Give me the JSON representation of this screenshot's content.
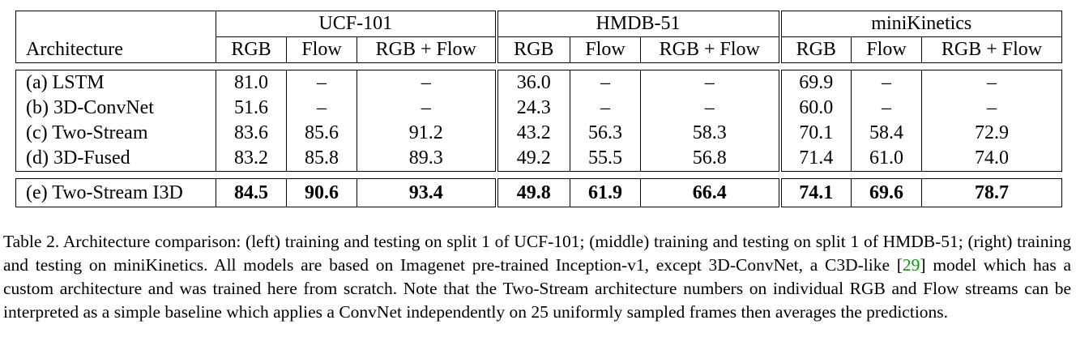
{
  "table": {
    "groups": [
      "UCF-101",
      "HMDB-51",
      "miniKinetics"
    ],
    "arch_header": "Architecture",
    "subheaders": [
      "RGB",
      "Flow",
      "RGB + Flow"
    ],
    "rows": [
      {
        "name": "(a) LSTM",
        "values": [
          "81.0",
          "–",
          "–",
          "36.0",
          "–",
          "–",
          "69.9",
          "–",
          "–"
        ]
      },
      {
        "name": "(b) 3D-ConvNet",
        "values": [
          "51.6",
          "–",
          "–",
          "24.3",
          "–",
          "–",
          "60.0",
          "–",
          "–"
        ]
      },
      {
        "name": "(c) Two-Stream",
        "values": [
          "83.6",
          "85.6",
          "91.2",
          "43.2",
          "56.3",
          "58.3",
          "70.1",
          "58.4",
          "72.9"
        ]
      },
      {
        "name": "(d) 3D-Fused",
        "values": [
          "83.2",
          "85.8",
          "89.3",
          "49.2",
          "55.5",
          "56.8",
          "71.4",
          "61.0",
          "74.0"
        ]
      }
    ],
    "final_row": {
      "name": "(e) Two-Stream I3D",
      "values": [
        "84.5",
        "90.6",
        "93.4",
        "49.8",
        "61.9",
        "66.4",
        "74.1",
        "69.6",
        "78.7"
      ]
    }
  },
  "caption": {
    "before_ref": "Table 2. Architecture comparison: (left) training and testing on split 1 of UCF-101; (middle) training and testing on split 1 of HMDB-51; (right) training and testing on miniKinetics. All models are based on Imagenet pre-trained Inception-v1, except 3D-ConvNet, a C3D-like [",
    "ref": "29",
    "after_ref": "] model which has a custom architecture and was trained here from scratch. Note that the Two-Stream architecture numbers on individual RGB and Flow streams can be interpreted as a simple baseline which applies a ConvNet independently on 25 uniformly sampled frames then averages the predictions."
  }
}
